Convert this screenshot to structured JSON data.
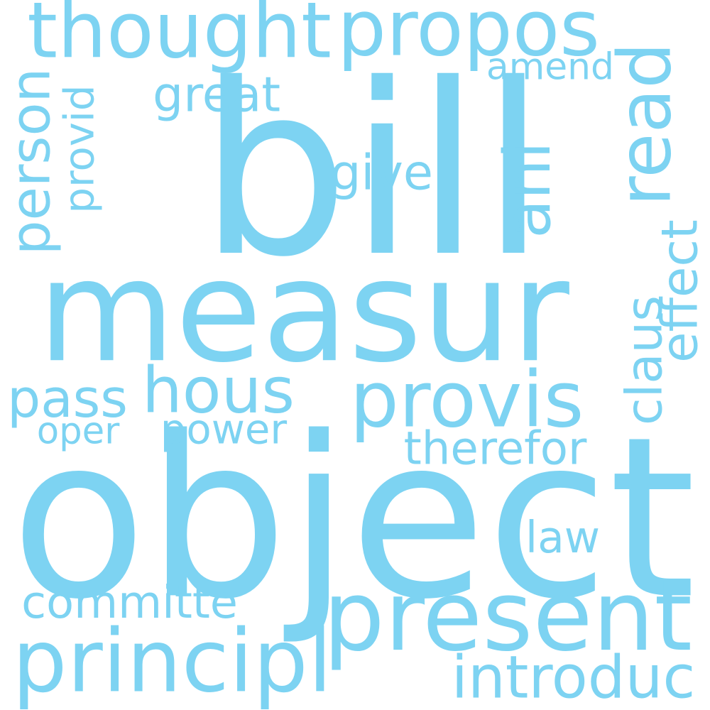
{
  "word_color": "#7dd3f2",
  "background": "#ffffff",
  "words": {
    "bill": "bill",
    "measur": "measur",
    "object": "object",
    "thought": "thought",
    "propos": "propos",
    "present": "present",
    "provis": "provis",
    "hous": "hous",
    "principl": "principl",
    "read": "read",
    "ani": "ani",
    "person": "person",
    "provid": "provid",
    "great": "great",
    "amend": "amend",
    "give": "give",
    "pass": "pass",
    "oper": "oper",
    "power": "power",
    "therefor": "therefor",
    "claus": "claus",
    "effect": "effect",
    "law": "law",
    "committe": "committe",
    "introduc": "introduc"
  }
}
